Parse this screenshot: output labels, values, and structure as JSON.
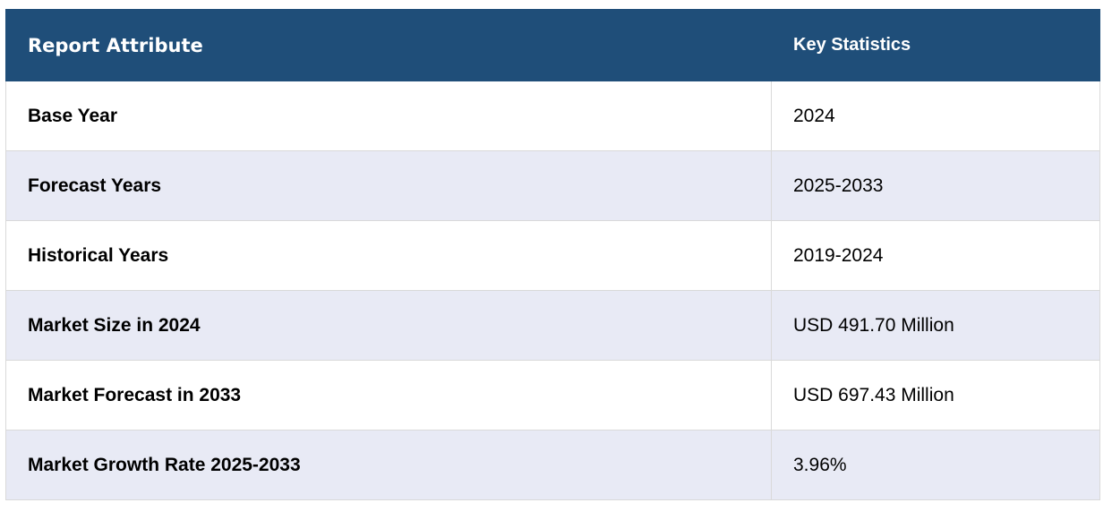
{
  "table": {
    "headers": {
      "attribute": "Report Attribute",
      "statistics": "Key Statistics"
    },
    "rows": [
      {
        "attribute": "Base Year",
        "value": "2024"
      },
      {
        "attribute": "Forecast Years",
        "value": "2025-2033"
      },
      {
        "attribute": "Historical Years",
        "value": "2019-2024"
      },
      {
        "attribute": "Market Size in 2024",
        "value": "USD 491.70 Million"
      },
      {
        "attribute": "Market Forecast in 2033",
        "value": "USD 697.43 Million"
      },
      {
        "attribute": "Market Growth Rate 2025-2033",
        "value": "3.96%"
      }
    ]
  },
  "colors": {
    "header_background": "#1f4e79",
    "header_text": "#ffffff",
    "row_alt_background": "#e8eaf5",
    "border": "#d9d9d9"
  }
}
